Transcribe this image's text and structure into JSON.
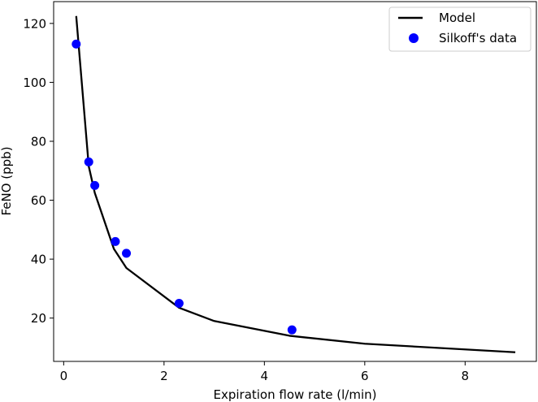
{
  "chart_data": {
    "type": "line",
    "title": "",
    "xlabel": "Expiration flow rate (l/min)",
    "ylabel": "FeNO (ppb)",
    "xlim": [
      -0.2,
      9.42
    ],
    "ylim": [
      5.3,
      127.4
    ],
    "xticks": [
      0,
      2,
      4,
      6,
      8
    ],
    "yticks": [
      20,
      40,
      60,
      80,
      100,
      120
    ],
    "grid": false,
    "legend_position": "top-right",
    "series": [
      {
        "name": "Model",
        "kind": "line",
        "color": "#000000",
        "x": [
          0.25,
          0.5,
          0.62,
          1.0,
          1.25,
          2.3,
          3.0,
          4.5,
          6.0,
          9.0
        ],
        "y": [
          122.5,
          71.5,
          62.5,
          43.5,
          37.0,
          23.5,
          19.0,
          14.0,
          11.3,
          8.4
        ]
      },
      {
        "name": "Silkoff's data",
        "kind": "scatter",
        "color": "#0000ff",
        "x": [
          0.25,
          0.5,
          0.62,
          1.03,
          1.25,
          2.3,
          4.55
        ],
        "y": [
          113,
          73,
          65,
          46,
          42,
          25,
          16
        ]
      }
    ]
  }
}
